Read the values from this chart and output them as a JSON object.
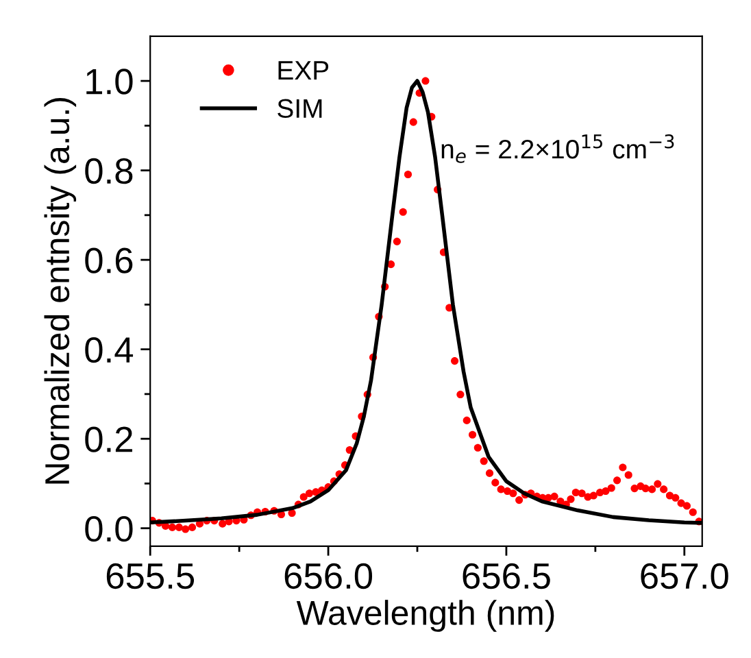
{
  "chart_data": {
    "type": "scatter",
    "xlabel": "Wavelength (nm)",
    "ylabel": "Normalized entnsity (a.u.)",
    "annotations": [
      "n$_{e}$ = 2.2×10$^{15}$ cm$^{−3}$"
    ],
    "xlim": [
      655.5,
      657.05
    ],
    "ylim": [
      -0.04,
      1.1
    ],
    "xticks": [
      655.5,
      {
        "value": 655.75,
        "label": null
      },
      {
        "value": 656,
        "label": "656.0"
      },
      {
        "value": 656.25,
        "label": null
      },
      656.5,
      {
        "value": 656.75,
        "label": null
      },
      {
        "value": 657,
        "label": "657.0"
      }
    ],
    "yticks": [
      {
        "value": 0,
        "label": "0.0"
      },
      {
        "value": 0.1,
        "label": null
      },
      0.2,
      {
        "value": 0.3,
        "label": null
      },
      0.4,
      {
        "value": 0.5,
        "label": null
      },
      0.6,
      {
        "value": 0.7,
        "label": null
      },
      0.8,
      {
        "value": 0.9,
        "label": null
      },
      {
        "value": 1,
        "label": "1.0"
      }
    ],
    "legend": "top left",
    "grid": false,
    "series": [
      {
        "name": "EXP",
        "color": "#ff0000",
        "marker": "circle",
        "x": [
          655.506,
          655.525,
          655.543,
          655.562,
          655.581,
          655.599,
          655.618,
          655.639,
          655.659,
          655.68,
          655.703,
          655.721,
          655.742,
          655.763,
          655.783,
          655.801,
          655.823,
          655.848,
          655.868,
          655.898,
          655.916,
          655.931,
          655.947,
          655.965,
          655.982,
          656.0,
          656.016,
          656.031,
          656.047,
          656.06,
          656.077,
          656.094,
          656.11,
          656.126,
          656.142,
          656.159,
          656.176,
          656.193,
          656.21,
          656.224,
          656.239,
          656.256,
          656.273,
          656.29,
          656.307,
          656.324,
          656.34,
          656.355,
          656.371,
          656.389,
          656.405,
          656.42,
          656.437,
          656.453,
          656.469,
          656.485,
          656.503,
          656.519,
          656.536,
          656.553,
          656.569,
          656.586,
          656.602,
          656.618,
          656.635,
          656.652,
          656.668,
          656.681,
          656.695,
          656.712,
          656.729,
          656.745,
          656.763,
          656.779,
          656.795,
          656.811,
          656.827,
          656.843,
          656.86,
          656.877,
          656.891,
          656.909,
          656.925,
          656.942,
          656.959,
          656.975,
          656.991,
          657.007,
          657.024,
          657.041
        ],
        "values": [
          0.017,
          0.012,
          0.005,
          0.002,
          0.002,
          -0.002,
          0.002,
          0.01,
          0.017,
          0.017,
          0.01,
          0.015,
          0.017,
          0.019,
          0.029,
          0.036,
          0.037,
          0.039,
          0.031,
          0.034,
          0.053,
          0.07,
          0.078,
          0.081,
          0.085,
          0.092,
          0.105,
          0.121,
          0.141,
          0.175,
          0.206,
          0.25,
          0.299,
          0.382,
          0.473,
          0.54,
          0.59,
          0.641,
          0.707,
          0.791,
          0.908,
          0.973,
          1.0,
          0.92,
          0.757,
          0.617,
          0.493,
          0.374,
          0.299,
          0.241,
          0.209,
          0.18,
          0.15,
          0.123,
          0.102,
          0.087,
          0.083,
          0.078,
          0.063,
          0.075,
          0.078,
          0.071,
          0.068,
          0.068,
          0.071,
          0.06,
          0.053,
          0.065,
          0.08,
          0.078,
          0.07,
          0.073,
          0.08,
          0.083,
          0.09,
          0.107,
          0.136,
          0.119,
          0.089,
          0.094,
          0.089,
          0.087,
          0.099,
          0.087,
          0.073,
          0.068,
          0.056,
          0.05,
          0.036,
          0.015
        ]
      },
      {
        "name": "SIM",
        "type": "line",
        "color": "#000000",
        "marker": "none",
        "line_style": "solid",
        "x": [
          655.5,
          655.6,
          655.7,
          655.8,
          655.9,
          655.95,
          656.0,
          656.05,
          656.08,
          656.1,
          656.12,
          656.15,
          656.18,
          656.2,
          656.22,
          656.235,
          656.25,
          656.265,
          656.28,
          656.3,
          656.32,
          656.35,
          656.38,
          656.4,
          656.45,
          656.5,
          656.55,
          656.6,
          656.7,
          656.8,
          656.9,
          657.0,
          657.05
        ],
        "values": [
          0.013,
          0.017,
          0.022,
          0.03,
          0.045,
          0.06,
          0.085,
          0.13,
          0.19,
          0.25,
          0.33,
          0.5,
          0.7,
          0.83,
          0.94,
          0.985,
          1.0,
          0.975,
          0.93,
          0.83,
          0.7,
          0.5,
          0.35,
          0.27,
          0.16,
          0.105,
          0.078,
          0.06,
          0.04,
          0.025,
          0.018,
          0.013,
          0.012
        ]
      }
    ]
  }
}
